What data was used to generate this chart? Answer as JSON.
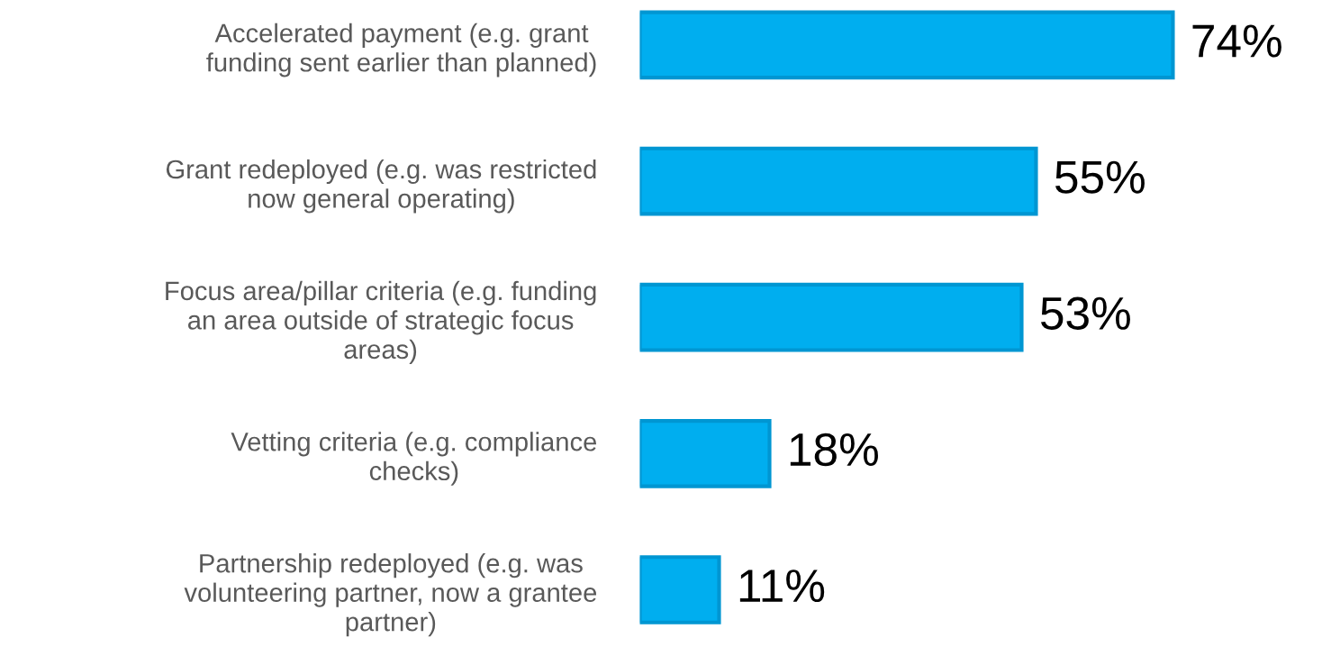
{
  "chart_data": {
    "type": "bar",
    "orientation": "horizontal",
    "categories": [
      "Accelerated payment (e.g. grant\nfunding sent earlier than planned)",
      "Grant redeployed (e.g. was restricted\nnow general operating)",
      "Focus area/pillar criteria (e.g. funding\nan area outside of strategic focus\nareas)",
      "Vetting criteria (e.g. compliance\nchecks)",
      "Partnership redeployed (e.g. was\nvolunteering partner, now a grantee\npartner)"
    ],
    "values": [
      74,
      55,
      53,
      18,
      11
    ],
    "value_labels": [
      "74%",
      "55%",
      "53%",
      "18%",
      "11%"
    ],
    "color": "#00aeef",
    "grid": false,
    "legend": false
  }
}
